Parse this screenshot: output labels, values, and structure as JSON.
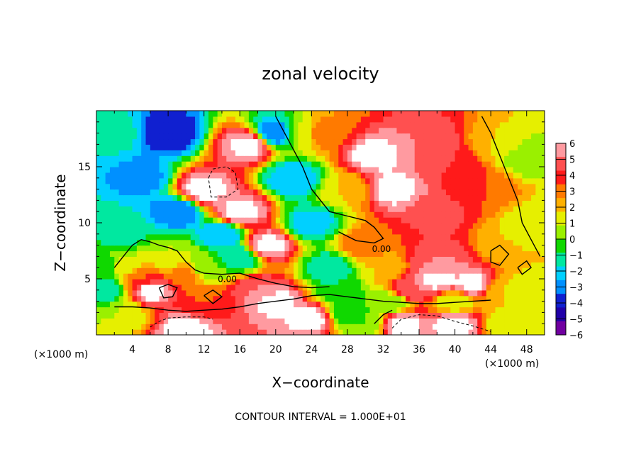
{
  "chart_data": {
    "type": "heatmap",
    "title": "zonal velocity",
    "xlabel": "X−coordinate",
    "ylabel": "Z−coordinate",
    "x_scale_note": "(×1000 m)",
    "z_scale_note": "(×1000 m)",
    "xlim": [
      0,
      50
    ],
    "zlim": [
      0,
      20
    ],
    "x_ticks": [
      4,
      8,
      12,
      16,
      20,
      24,
      28,
      32,
      36,
      40,
      44,
      48
    ],
    "z_ticks": [
      5,
      10,
      15
    ],
    "colorbar": {
      "ticks": [
        6,
        5,
        4,
        3,
        2,
        1,
        0,
        -1,
        -2,
        -3,
        -4,
        -5,
        -6
      ],
      "tick_labels": [
        "6",
        "5",
        "4",
        "3",
        "2",
        "1",
        "0",
        "−1",
        "−2",
        "−3",
        "−4",
        "−5",
        "−6"
      ],
      "colors": [
        "#ff9aa0",
        "#ff5050",
        "#ff1a1a",
        "#ff7a00",
        "#ffb000",
        "#e6ef00",
        "#9af000",
        "#10d800",
        "#00e8a0",
        "#00d0ff",
        "#0090ff",
        "#1020d0",
        "#2000a8",
        "#7000a0"
      ]
    },
    "contour_label": "0.00",
    "footer": "CONTOUR INTERVAL = 1.000E+01",
    "saturated_color": "#ffffff",
    "anchors": [
      {
        "x": 2,
        "z": 18,
        "v": -2.5
      },
      {
        "x": 5,
        "z": 14,
        "v": -4.5
      },
      {
        "x": 8,
        "z": 18,
        "v": -6
      },
      {
        "x": 9,
        "z": 11,
        "v": -5
      },
      {
        "x": 14,
        "z": 9,
        "v": -4
      },
      {
        "x": 16,
        "z": 7,
        "v": -3
      },
      {
        "x": 3,
        "z": 9,
        "v": -2.5
      },
      {
        "x": 1,
        "z": 6,
        "v": -2
      },
      {
        "x": 1,
        "z": 4,
        "v": -3
      },
      {
        "x": 5,
        "z": 5,
        "v": 3
      },
      {
        "x": 6,
        "z": 4,
        "v": 6.5
      },
      {
        "x": 3,
        "z": 6,
        "v": 0.5
      },
      {
        "x": 10,
        "z": 5.5,
        "v": 2.5
      },
      {
        "x": 8,
        "z": 7,
        "v": 0
      },
      {
        "x": 12,
        "z": 6,
        "v": -1
      },
      {
        "x": 12,
        "z": 3,
        "v": 3
      },
      {
        "x": 18,
        "z": 4,
        "v": 5
      },
      {
        "x": 20,
        "z": 3,
        "v": 6.5
      },
      {
        "x": 24,
        "z": 1.5,
        "v": 6.5
      },
      {
        "x": 28,
        "z": 2,
        "v": -2
      },
      {
        "x": 30,
        "z": 1,
        "v": -1
      },
      {
        "x": 34,
        "z": 1,
        "v": 6.5
      },
      {
        "x": 40,
        "z": 1,
        "v": 6.5
      },
      {
        "x": 46,
        "z": 1,
        "v": 0
      },
      {
        "x": 10,
        "z": 0.5,
        "v": 6.5
      },
      {
        "x": 3,
        "z": 2,
        "v": 0
      },
      {
        "x": 17,
        "z": 17,
        "v": 6.5
      },
      {
        "x": 12,
        "z": 13,
        "v": 6.5
      },
      {
        "x": 16,
        "z": 11,
        "v": 6.5
      },
      {
        "x": 19,
        "z": 8,
        "v": 6.5
      },
      {
        "x": 20,
        "z": 18,
        "v": -5
      },
      {
        "x": 22,
        "z": 14,
        "v": -4
      },
      {
        "x": 24,
        "z": 10,
        "v": -3.5
      },
      {
        "x": 26,
        "z": 6,
        "v": -3
      },
      {
        "x": 27,
        "z": 4,
        "v": -2
      },
      {
        "x": 23,
        "z": 18,
        "v": 0
      },
      {
        "x": 25,
        "z": 18,
        "v": 3
      },
      {
        "x": 28,
        "z": 13,
        "v": 1
      },
      {
        "x": 31,
        "z": 16,
        "v": 6.5
      },
      {
        "x": 33,
        "z": 13,
        "v": 6.5
      },
      {
        "x": 30,
        "z": 8,
        "v": 3
      },
      {
        "x": 32,
        "z": 6,
        "v": 1
      },
      {
        "x": 37,
        "z": 17,
        "v": 5
      },
      {
        "x": 40,
        "z": 15,
        "v": 4
      },
      {
        "x": 43,
        "z": 13,
        "v": 3
      },
      {
        "x": 38,
        "z": 11,
        "v": 4.5
      },
      {
        "x": 45,
        "z": 17,
        "v": 1
      },
      {
        "x": 48,
        "z": 16,
        "v": -1
      },
      {
        "x": 49,
        "z": 10,
        "v": 0
      },
      {
        "x": 46,
        "z": 8,
        "v": 1
      },
      {
        "x": 38,
        "z": 6.5,
        "v": 5
      },
      {
        "x": 38,
        "z": 5,
        "v": 6.5
      },
      {
        "x": 42,
        "z": 4.5,
        "v": 6.5
      },
      {
        "x": 35,
        "z": 4,
        "v": 5
      },
      {
        "x": 45,
        "z": 4,
        "v": 1
      },
      {
        "x": 48,
        "z": 4,
        "v": 0
      },
      {
        "x": 33,
        "z": 3,
        "v": -1
      },
      {
        "x": 40,
        "z": 3,
        "v": 0
      }
    ],
    "contours": [
      {
        "style": "solid",
        "points": [
          [
            2,
            2.5
          ],
          [
            4,
            2.5
          ],
          [
            6,
            2.4
          ],
          [
            8,
            2.2
          ],
          [
            10,
            2.1
          ],
          [
            12,
            2.2
          ],
          [
            14,
            2.3
          ],
          [
            16,
            2.5
          ],
          [
            18,
            2.8
          ],
          [
            20,
            3.0
          ],
          [
            22,
            3.2
          ],
          [
            24,
            3.5
          ],
          [
            26,
            3.6
          ],
          [
            28,
            3.4
          ],
          [
            30,
            3.2
          ],
          [
            32,
            3.0
          ],
          [
            34,
            2.9
          ],
          [
            36,
            2.8
          ],
          [
            38,
            2.8
          ],
          [
            40,
            2.9
          ],
          [
            42,
            3.0
          ],
          [
            44,
            3.1
          ]
        ]
      },
      {
        "style": "solid",
        "points": [
          [
            2,
            6
          ],
          [
            3,
            7
          ],
          [
            4,
            8
          ],
          [
            5,
            8.5
          ],
          [
            6,
            8.3
          ],
          [
            7,
            8.0
          ],
          [
            8,
            7.8
          ],
          [
            9,
            7.5
          ],
          [
            10,
            6.5
          ],
          [
            11,
            5.8
          ],
          [
            12,
            5.5
          ],
          [
            14,
            5.4
          ],
          [
            16,
            5.5
          ],
          [
            18,
            5.0
          ],
          [
            20,
            4.6
          ],
          [
            22,
            4.3
          ],
          [
            24,
            4.2
          ],
          [
            26,
            4.3
          ]
        ]
      },
      {
        "style": "solid",
        "points": [
          [
            20,
            19.5
          ],
          [
            21,
            18
          ],
          [
            22,
            16.5
          ],
          [
            23,
            15
          ],
          [
            24,
            13
          ],
          [
            26,
            11
          ],
          [
            28,
            10.6
          ],
          [
            30,
            10.2
          ],
          [
            31,
            9.6
          ],
          [
            32,
            8.6
          ],
          [
            31,
            8.2
          ],
          [
            29,
            8.4
          ],
          [
            28,
            8.8
          ],
          [
            27,
            9.2
          ]
        ]
      },
      {
        "style": "solid",
        "points": [
          [
            43,
            19.5
          ],
          [
            44,
            18
          ],
          [
            45,
            16
          ],
          [
            46,
            14
          ],
          [
            47,
            12
          ],
          [
            47.5,
            10
          ],
          [
            48.5,
            8.5
          ],
          [
            49.5,
            7
          ]
        ]
      },
      {
        "style": "solid",
        "points": [
          [
            44,
            7.5
          ],
          [
            45,
            8
          ],
          [
            46,
            7.2
          ],
          [
            45,
            6.2
          ],
          [
            44,
            6.5
          ],
          [
            44,
            7.5
          ]
        ]
      },
      {
        "style": "solid",
        "points": [
          [
            47,
            6
          ],
          [
            48,
            6.6
          ],
          [
            48.5,
            6
          ],
          [
            47.5,
            5.4
          ],
          [
            47,
            6
          ]
        ]
      },
      {
        "style": "solid",
        "points": [
          [
            7,
            4.2
          ],
          [
            8,
            4.5
          ],
          [
            9,
            4.2
          ],
          [
            8.5,
            3.4
          ],
          [
            7.5,
            3.3
          ],
          [
            7,
            4.2
          ]
        ]
      },
      {
        "style": "solid",
        "points": [
          [
            12,
            3.5
          ],
          [
            13,
            4.0
          ],
          [
            14,
            3.4
          ],
          [
            13,
            2.8
          ],
          [
            12,
            3.5
          ]
        ]
      },
      {
        "style": "solid",
        "points": [
          [
            31,
            1
          ],
          [
            32,
            1.8
          ],
          [
            33,
            2.2
          ]
        ]
      },
      {
        "style": "dashed",
        "points": [
          [
            12.5,
            14
          ],
          [
            13,
            14.8
          ],
          [
            14.5,
            15
          ],
          [
            15.5,
            14.5
          ],
          [
            15.8,
            13
          ],
          [
            14.5,
            12.3
          ],
          [
            12.8,
            12.3
          ],
          [
            12.5,
            14
          ]
        ]
      },
      {
        "style": "dashed",
        "points": [
          [
            33,
            0.6
          ],
          [
            34,
            1.4
          ],
          [
            36,
            1.8
          ],
          [
            38,
            1.7
          ],
          [
            40,
            1.2
          ],
          [
            42,
            0.8
          ],
          [
            44,
            0.3
          ]
        ]
      },
      {
        "style": "dashed",
        "points": [
          [
            6,
            0.7
          ],
          [
            7,
            1.2
          ],
          [
            8,
            1.5
          ],
          [
            10,
            1.6
          ],
          [
            12,
            1.6
          ],
          [
            13,
            1.4
          ]
        ]
      }
    ]
  }
}
